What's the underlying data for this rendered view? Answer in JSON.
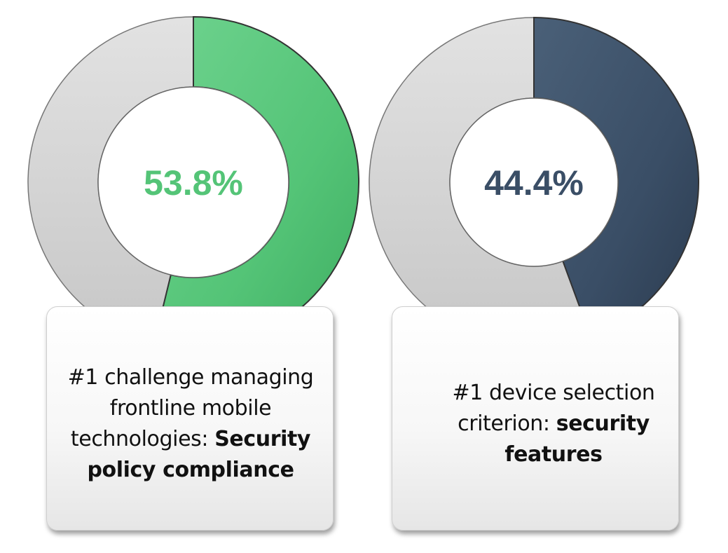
{
  "chart_data": [
    {
      "type": "pie",
      "value": 53.8,
      "remainder": 46.2,
      "value_label": "53.8%",
      "colors": {
        "value": "#54c477",
        "remainder": "#d3d3d3",
        "label": "#54c477"
      },
      "caption": {
        "plain": "#1 challenge managing frontline mobile technologies: ",
        "bold": "Security policy compliance"
      }
    },
    {
      "type": "pie",
      "value": 44.4,
      "remainder": 55.6,
      "value_label": "44.4%",
      "colors": {
        "value": "#3a4e66",
        "remainder": "#d3d3d3",
        "label": "#3a4e66"
      },
      "caption": {
        "plain": "#1 device selection criterion: ",
        "bold": "security features"
      }
    }
  ]
}
